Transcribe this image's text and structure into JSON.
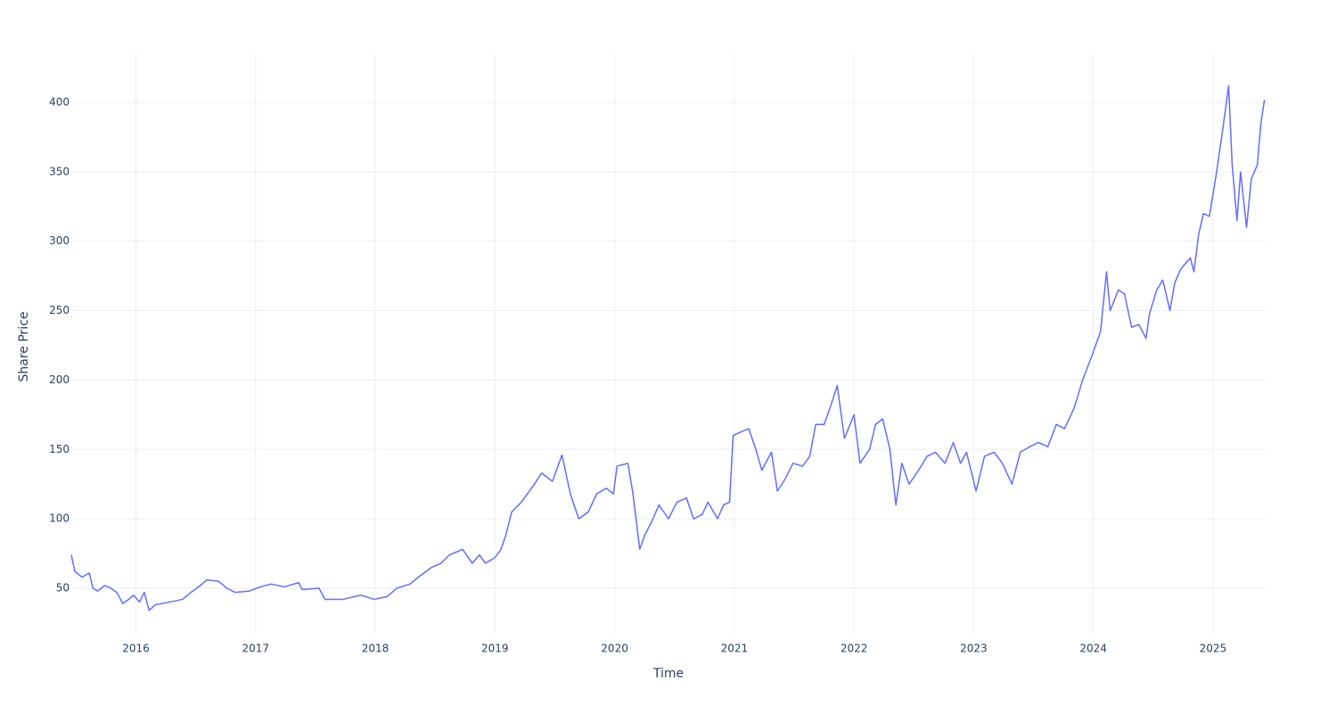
{
  "chart_data": {
    "type": "line",
    "x_label": "Time",
    "y_label": "Share Price",
    "xlim": [
      2015.46,
      2025.44
    ],
    "ylim": [
      16.6,
      435.3
    ],
    "xticks": [
      2016,
      2017,
      2018,
      2019,
      2020,
      2021,
      2022,
      2023,
      2024,
      2025
    ],
    "yticks": [
      50,
      100,
      150,
      200,
      250,
      300,
      350,
      400
    ],
    "grid": true,
    "series": [
      {
        "color": "#636efa",
        "x": [
          2015.46,
          2015.49,
          2015.55,
          2015.61,
          2015.64,
          2015.68,
          2015.74,
          2015.79,
          2015.84,
          2015.89,
          2015.94,
          2015.98,
          2016.03,
          2016.07,
          2016.11,
          2016.16,
          2016.28,
          2016.39,
          2016.46,
          2016.54,
          2016.59,
          2016.69,
          2016.76,
          2016.83,
          2016.95,
          2017.04,
          2017.13,
          2017.24,
          2017.36,
          2017.39,
          2017.53,
          2017.58,
          2017.73,
          2017.88,
          2017.99,
          2018.1,
          2018.18,
          2018.29,
          2018.36,
          2018.47,
          2018.55,
          2018.62,
          2018.73,
          2018.81,
          2018.87,
          2018.92,
          2019.0,
          2019.05,
          2019.09,
          2019.14,
          2019.22,
          2019.33,
          2019.39,
          2019.48,
          2019.56,
          2019.63,
          2019.7,
          2019.78,
          2019.85,
          2019.93,
          2019.99,
          2020.02,
          2020.11,
          2020.15,
          2020.21,
          2020.25,
          2020.31,
          2020.37,
          2020.45,
          2020.52,
          2020.6,
          2020.66,
          2020.73,
          2020.78,
          2020.86,
          2020.91,
          2020.96,
          2020.99,
          2021.04,
          2021.12,
          2021.18,
          2021.23,
          2021.31,
          2021.36,
          2021.42,
          2021.49,
          2021.57,
          2021.63,
          2021.68,
          2021.75,
          2021.8,
          2021.86,
          2021.92,
          2022.0,
          2022.05,
          2022.13,
          2022.18,
          2022.24,
          2022.3,
          2022.35,
          2022.4,
          2022.46,
          2022.54,
          2022.61,
          2022.68,
          2022.76,
          2022.83,
          2022.89,
          2022.94,
          2023.02,
          2023.09,
          2023.17,
          2023.24,
          2023.32,
          2023.39,
          2023.47,
          2023.54,
          2023.62,
          2023.69,
          2023.76,
          2023.84,
          2023.91,
          2023.99,
          2024.06,
          2024.11,
          2024.14,
          2024.21,
          2024.26,
          2024.32,
          2024.38,
          2024.44,
          2024.47,
          2024.53,
          2024.58,
          2024.64,
          2024.68,
          2024.73,
          2024.81,
          2024.84,
          2024.88,
          2024.92,
          2024.97,
          2025.03,
          2025.08,
          2025.13,
          2025.16,
          2025.2,
          2025.23,
          2025.28,
          2025.32,
          2025.37,
          2025.4,
          2025.43
        ],
        "values": [
          74,
          62,
          58,
          61,
          50,
          48,
          52,
          50,
          47,
          39,
          42,
          45,
          40,
          47,
          34,
          38,
          40,
          42,
          47,
          52,
          56,
          55,
          50,
          47,
          48,
          51,
          53,
          51,
          54,
          49,
          50,
          42,
          42,
          45,
          42,
          44,
          50,
          53,
          58,
          65,
          68,
          74,
          78,
          68,
          74,
          68,
          72,
          78,
          88,
          105,
          112,
          125,
          133,
          127,
          146,
          118,
          100,
          105,
          118,
          122,
          118,
          138,
          140,
          120,
          78,
          88,
          98,
          110,
          100,
          112,
          115,
          100,
          103,
          112,
          100,
          110,
          112,
          160,
          162,
          165,
          150,
          135,
          148,
          120,
          128,
          140,
          138,
          145,
          168,
          168,
          180,
          196,
          158,
          175,
          140,
          150,
          168,
          172,
          150,
          110,
          140,
          125,
          135,
          145,
          148,
          140,
          155,
          140,
          148,
          120,
          145,
          148,
          140,
          125,
          148,
          152,
          155,
          152,
          168,
          165,
          180,
          200,
          218,
          235,
          278,
          250,
          265,
          262,
          238,
          240,
          230,
          248,
          265,
          272,
          250,
          270,
          280,
          288,
          278,
          305,
          320,
          318,
          350,
          380,
          412,
          355,
          315,
          350,
          310,
          345,
          355,
          385,
          402
        ]
      }
    ]
  }
}
